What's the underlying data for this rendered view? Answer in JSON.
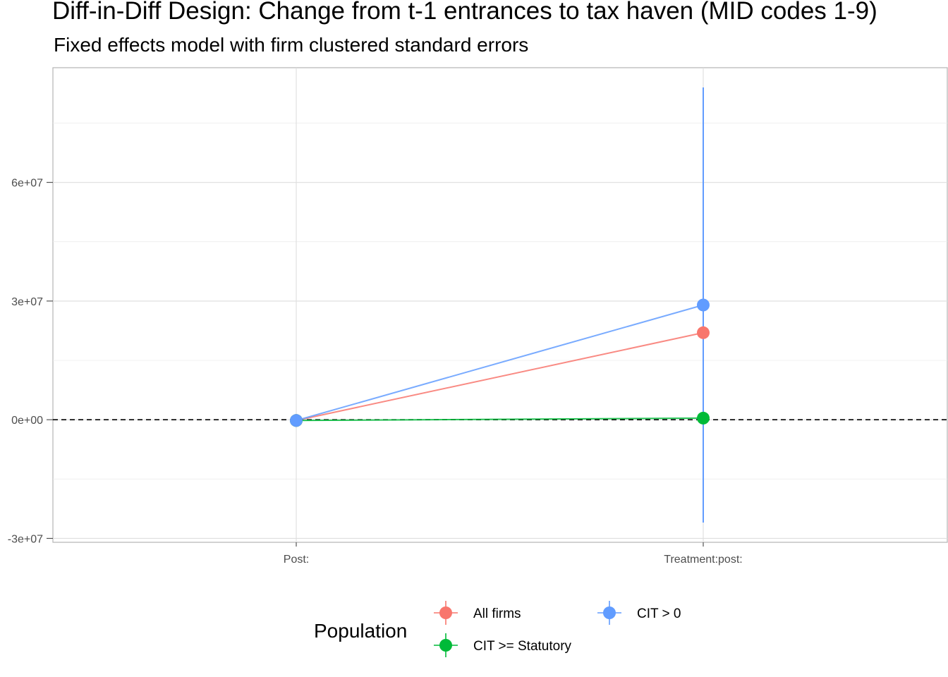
{
  "chart_data": {
    "type": "line",
    "title": "Diff-in-Diff Design: Change from t-1 entrances to tax haven (MID codes 1-9)",
    "subtitle": "Fixed effects model with firm clustered standard errors",
    "xlabel": "",
    "ylabel": "",
    "categories": [
      "Post:",
      "Treatment:post:"
    ],
    "ylim": [
      -31000000,
      89000000
    ],
    "yticks": [
      -30000000,
      0,
      30000000,
      60000000
    ],
    "ytick_labels": [
      "-3e+07",
      "0e+00",
      "3e+07",
      "6e+07"
    ],
    "reference_line": {
      "y": 0,
      "style": "dashed",
      "color": "#000000"
    },
    "grid": true,
    "legend": {
      "title": "Population",
      "position": "bottom"
    },
    "series": [
      {
        "name": "All firms",
        "color": "#F8766D",
        "values": [
          -200000,
          22000000
        ],
        "lower": [
          -200000,
          22000000
        ],
        "upper": [
          -200000,
          22000000
        ]
      },
      {
        "name": "CIT >= Statutory",
        "color": "#00BA38",
        "values": [
          -200000,
          400000
        ],
        "lower": [
          -200000,
          400000
        ],
        "upper": [
          -200000,
          400000
        ]
      },
      {
        "name": "CIT > 0",
        "color": "#619CFF",
        "values": [
          -200000,
          29000000
        ],
        "lower": [
          -200000,
          -26000000
        ],
        "upper": [
          -200000,
          84000000
        ]
      }
    ]
  }
}
